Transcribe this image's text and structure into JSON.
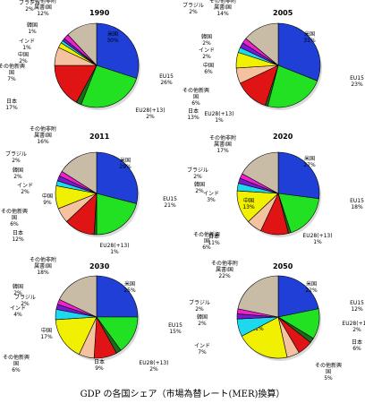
{
  "caption": "GDP の各国シェア（市場為替レート(MER)換算）",
  "chart_data": [
    {
      "type": "pie",
      "title": "1990",
      "slices": [
        {
          "label": "米国",
          "value": 30,
          "color": "#1f3fd6"
        },
        {
          "label": "EU15",
          "value": 26,
          "color": "#22e022"
        },
        {
          "label": "EU28(+13)",
          "value": 2,
          "color": "#1a6b1a"
        },
        {
          "label": "日本",
          "value": 17,
          "color": "#e01414"
        },
        {
          "label": "その他新興国",
          "value": 7,
          "color": "#f5c2a0"
        },
        {
          "label": "中国",
          "value": 2,
          "color": "#f0f000"
        },
        {
          "label": "インド",
          "value": 1,
          "color": "#1ed8ee"
        },
        {
          "label": "韓国",
          "value": 1,
          "color": "#7a1ad0"
        },
        {
          "label": "ブラジル",
          "value": 2,
          "color": "#ee22cc"
        },
        {
          "label": "その他非附属書I国",
          "value": 12,
          "color": "#c8bca6"
        }
      ],
      "data_labels": [
        {
          "line1": "米国",
          "line2": "30%"
        },
        {
          "line1": "EU15",
          "line2": "26%"
        },
        {
          "line1": "EU28(+13)",
          "line2": "2%"
        },
        {
          "line1": "日本",
          "line2": "17%"
        },
        {
          "line1": "その他新興",
          "line2": "国",
          "line3": "7%"
        },
        {
          "line1": "中国",
          "line2": "2%"
        },
        {
          "line1": "インド",
          "line2": "1%"
        },
        {
          "line1": "韓国",
          "line2": "1%"
        },
        {
          "line1": "ブラジル",
          "line2": "2%"
        },
        {
          "line1": "その他非附",
          "line2": "属書I国",
          "line3": "12%"
        }
      ]
    },
    {
      "type": "pie",
      "title": "2005",
      "slices": [
        {
          "label": "米国",
          "value": 31,
          "color": "#1f3fd6"
        },
        {
          "label": "EU15",
          "value": 23,
          "color": "#22e022"
        },
        {
          "label": "EU28(+13)",
          "value": 1,
          "color": "#1a6b1a"
        },
        {
          "label": "日本",
          "value": 13,
          "color": "#e01414"
        },
        {
          "label": "その他新興国",
          "value": 6,
          "color": "#f5c2a0"
        },
        {
          "label": "中国",
          "value": 6,
          "color": "#f0f000"
        },
        {
          "label": "インド",
          "value": 2,
          "color": "#1ed8ee"
        },
        {
          "label": "韓国",
          "value": 2,
          "color": "#7a1ad0"
        },
        {
          "label": "ブラジル",
          "value": 2,
          "color": "#ee22cc"
        },
        {
          "label": "その他非附属書I国",
          "value": 14,
          "color": "#c8bca6"
        }
      ],
      "data_labels": [
        {
          "line1": "米国",
          "line2": "31%"
        },
        {
          "line1": "EU15",
          "line2": "23%"
        },
        {
          "line1": "EU28(+13)",
          "line2": "1%"
        },
        {
          "line1": "日本",
          "line2": "13%"
        },
        {
          "line1": "その他新興",
          "line2": "国",
          "line3": "6%"
        },
        {
          "line1": "中国",
          "line2": "6%"
        },
        {
          "line1": "インド",
          "line2": "2%"
        },
        {
          "line1": "韓国",
          "line2": "2%"
        },
        {
          "line1": "ブラジル",
          "line2": "2%"
        },
        {
          "line1": "その他非附",
          "line2": "属書I国",
          "line3": "14%"
        }
      ]
    },
    {
      "type": "pie",
      "title": "2011",
      "slices": [
        {
          "label": "米国",
          "value": 29,
          "color": "#1f3fd6"
        },
        {
          "label": "EU15",
          "value": 21,
          "color": "#22e022"
        },
        {
          "label": "EU28(+13)",
          "value": 1,
          "color": "#1a6b1a"
        },
        {
          "label": "日本",
          "value": 12,
          "color": "#e01414"
        },
        {
          "label": "その他新興国",
          "value": 6,
          "color": "#f5c2a0"
        },
        {
          "label": "中国",
          "value": 9,
          "color": "#f0f000"
        },
        {
          "label": "インド",
          "value": 2,
          "color": "#1ed8ee"
        },
        {
          "label": "韓国",
          "value": 2,
          "color": "#7a1ad0"
        },
        {
          "label": "ブラジル",
          "value": 2,
          "color": "#ee22cc"
        },
        {
          "label": "その他非附属書I国",
          "value": 16,
          "color": "#c8bca6"
        }
      ],
      "data_labels": [
        {
          "line1": "米国",
          "line2": "29%"
        },
        {
          "line1": "EU15",
          "line2": "21%"
        },
        {
          "line1": "EU28(+13)",
          "line2": "1%"
        },
        {
          "line1": "日本",
          "line2": "12%"
        },
        {
          "line1": "その他新興",
          "line2": "国",
          "line3": "6%"
        },
        {
          "line1": "中国",
          "line2": "9%"
        },
        {
          "line1": "インド",
          "line2": "2%"
        },
        {
          "line1": "韓国",
          "line2": "2%"
        },
        {
          "line1": "ブラジル",
          "line2": "2%"
        },
        {
          "line1": "その他非附",
          "line2": "属書I国",
          "line3": "16%"
        }
      ]
    },
    {
      "type": "pie",
      "title": "2020",
      "slices": [
        {
          "label": "米国",
          "value": 27,
          "color": "#1f3fd6"
        },
        {
          "label": "EU15",
          "value": 18,
          "color": "#22e022"
        },
        {
          "label": "EU28(+13)",
          "value": 1,
          "color": "#1a6b1a"
        },
        {
          "label": "日本",
          "value": 11,
          "color": "#e01414"
        },
        {
          "label": "その他新興国",
          "value": 6,
          "color": "#f5c2a0"
        },
        {
          "label": "中国",
          "value": 13,
          "color": "#f0f000"
        },
        {
          "label": "インド",
          "value": 3,
          "color": "#1ed8ee"
        },
        {
          "label": "韓国",
          "value": 2,
          "color": "#7a1ad0"
        },
        {
          "label": "ブラジル",
          "value": 2,
          "color": "#ee22cc"
        },
        {
          "label": "その他非附属書I国",
          "value": 17,
          "color": "#c8bca6"
        }
      ],
      "data_labels": [
        {
          "line1": "米国",
          "line2": "27%"
        },
        {
          "line1": "EU15",
          "line2": "18%"
        },
        {
          "line1": "EU28(+13)",
          "line2": "1%"
        },
        {
          "line1": "日本",
          "line2": "11%"
        },
        {
          "line1": "その他新興",
          "line2": "国",
          "line3": "6%"
        },
        {
          "line1": "中国",
          "line2": "13%"
        },
        {
          "line1": "インド",
          "line2": "3%"
        },
        {
          "line1": "韓国",
          "line2": "2%"
        },
        {
          "line1": "ブラジル",
          "line2": "2%"
        },
        {
          "line1": "その他非附",
          "line2": "属書I国",
          "line3": "17%"
        }
      ]
    },
    {
      "type": "pie",
      "title": "2030",
      "slices": [
        {
          "label": "米国",
          "value": 25,
          "color": "#1f3fd6"
        },
        {
          "label": "EU15",
          "value": 15,
          "color": "#22e022"
        },
        {
          "label": "EU28(+13)",
          "value": 2,
          "color": "#1a6b1a"
        },
        {
          "label": "日本",
          "value": 9,
          "color": "#e01414"
        },
        {
          "label": "その他新興国",
          "value": 6,
          "color": "#f5c2a0"
        },
        {
          "label": "中国",
          "value": 17,
          "color": "#f0f000"
        },
        {
          "label": "インド",
          "value": 4,
          "color": "#1ed8ee"
        },
        {
          "label": "韓国",
          "value": 2,
          "color": "#7a1ad0"
        },
        {
          "label": "ブラジル",
          "value": 2,
          "color": "#ee22cc"
        },
        {
          "label": "その他非附属書I国",
          "value": 18,
          "color": "#c8bca6"
        }
      ],
      "data_labels": [
        {
          "line1": "米国",
          "line2": "25%"
        },
        {
          "line1": "EU15",
          "line2": "15%"
        },
        {
          "line1": "EU28(+13)",
          "line2": "2%"
        },
        {
          "line1": "日本",
          "line2": "9%"
        },
        {
          "line1": "その他新興",
          "line2": "国",
          "line3": "6%"
        },
        {
          "line1": "中国",
          "line2": "17%"
        },
        {
          "line1": "インド",
          "line2": "4%"
        },
        {
          "line1": "韓国",
          "line2": "2%"
        },
        {
          "line1": "ブラジル",
          "line2": "2%"
        },
        {
          "line1": "その他非附",
          "line2": "属書I国",
          "line3": "18%"
        }
      ]
    },
    {
      "type": "pie",
      "title": "2050",
      "slices": [
        {
          "label": "米国",
          "value": 22,
          "color": "#1f3fd6"
        },
        {
          "label": "EU15",
          "value": 12,
          "color": "#22e022"
        },
        {
          "label": "EU28(+13)",
          "value": 2,
          "color": "#1a6b1a"
        },
        {
          "label": "日本",
          "value": 6,
          "color": "#e01414"
        },
        {
          "label": "その他新興国",
          "value": 5,
          "color": "#f5c2a0"
        },
        {
          "label": "中国",
          "value": 21,
          "color": "#f0f000"
        },
        {
          "label": "インド",
          "value": 7,
          "color": "#1ed8ee"
        },
        {
          "label": "韓国",
          "value": 2,
          "color": "#7a1ad0"
        },
        {
          "label": "ブラジル",
          "value": 2,
          "color": "#ee22cc"
        },
        {
          "label": "その他非附属書I国",
          "value": 22,
          "color": "#c8bca6"
        }
      ],
      "data_labels": [
        {
          "line1": "米国",
          "line2": "22%"
        },
        {
          "line1": "EU15",
          "line2": "12%"
        },
        {
          "line1": "EU28(+13)",
          "line2": "2%"
        },
        {
          "line1": "日本",
          "line2": "6%"
        },
        {
          "line1": "その他新興",
          "line2": "国",
          "line3": "5%"
        },
        {
          "line1": "中国",
          "line2": "21%"
        },
        {
          "line1": "インド",
          "line2": "7%"
        },
        {
          "line1": "韓国",
          "line2": "2%"
        },
        {
          "line1": "ブラジル",
          "line2": "2%"
        },
        {
          "line1": "その他非附",
          "line2": "属書I国",
          "line3": "22%"
        }
      ]
    }
  ]
}
